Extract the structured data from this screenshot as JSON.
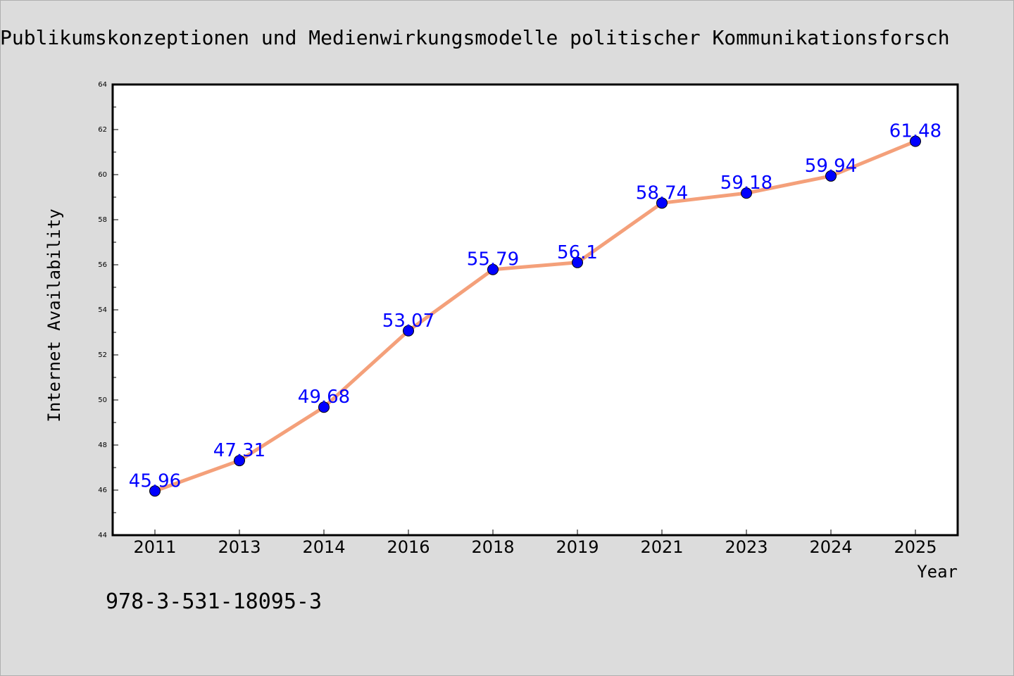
{
  "chart_data": {
    "type": "line",
    "title": "Publikumskonzeptionen und Medienwirkungsmodelle politischer Kommunikationsforsch",
    "xlabel": "Year",
    "ylabel": "Internet Availability",
    "ylim": [
      44,
      64
    ],
    "yticks": [
      "44",
      "46",
      "48",
      "50",
      "52",
      "54",
      "56",
      "58",
      "60",
      "62",
      "64"
    ],
    "categories": [
      "2011",
      "2013",
      "2014",
      "2016",
      "2018",
      "2019",
      "2021",
      "2023",
      "2024",
      "2025"
    ],
    "series": [
      {
        "values": [
          45.96,
          47.31,
          49.68,
          53.07,
          55.79,
          56.1,
          58.74,
          59.18,
          59.94,
          61.48
        ],
        "labels": [
          "45.96",
          "47.31",
          "49.68",
          "53.07",
          "55.79",
          "56.1",
          "58.74",
          "59.18",
          "59.94",
          "61.48"
        ]
      }
    ],
    "grid": false,
    "colors": {
      "line": "#f4a07a",
      "marker": "#0000ff",
      "label": "#0000ff",
      "background": "#dcdcdc",
      "plot_background": "#ffffff"
    }
  },
  "annotation": {
    "isbn": "978-3-531-18095-3"
  }
}
